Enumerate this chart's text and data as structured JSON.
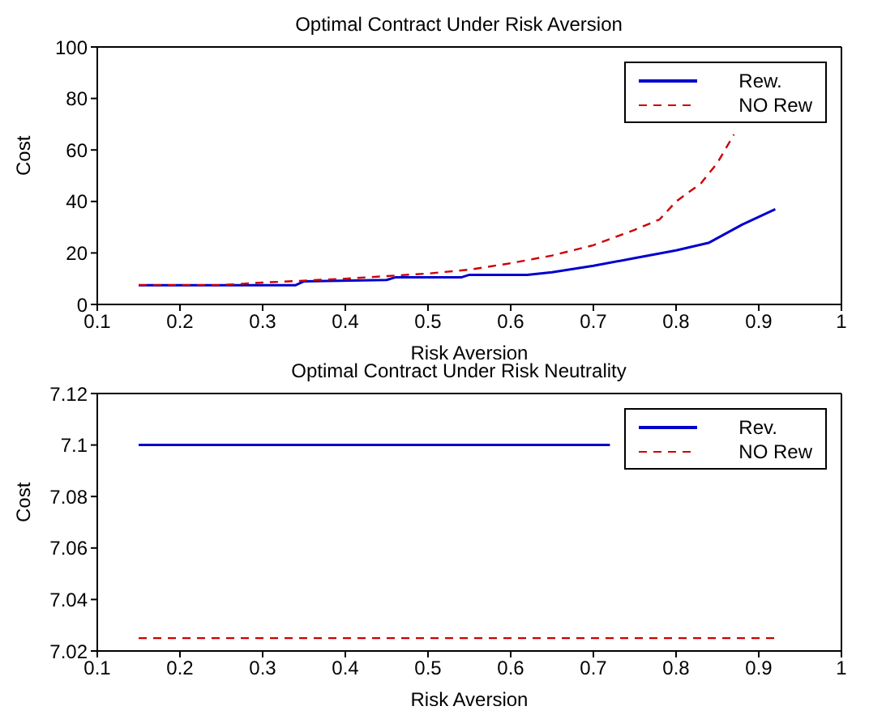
{
  "chart_data": [
    {
      "type": "line",
      "title": "Optimal Contract Under Risk Aversion",
      "xlabel": "Risk Aversion",
      "ylabel": "Cost",
      "xlim": [
        0.1,
        1
      ],
      "xticks": [
        0.1,
        0.2,
        0.3,
        0.4,
        0.5,
        0.6,
        0.7,
        0.8,
        0.9,
        1
      ],
      "ylim": [
        0,
        100
      ],
      "yticks": [
        0,
        20,
        40,
        60,
        80,
        100
      ],
      "grid": false,
      "legend": "top right",
      "series": [
        {
          "name": "Rew.",
          "color": "#0000cc",
          "line_style": "solid",
          "x": [
            0.15,
            0.34,
            0.35,
            0.45,
            0.46,
            0.54,
            0.55,
            0.62,
            0.65,
            0.7,
            0.75,
            0.8,
            0.84,
            0.88,
            0.92
          ],
          "values": [
            7.5,
            7.5,
            9,
            9.5,
            10.5,
            10.5,
            11.5,
            11.5,
            12.5,
            15,
            18,
            21,
            24,
            31,
            37
          ]
        },
        {
          "name": "NO Rew",
          "color": "#cc0000",
          "line_style": "dashed",
          "x": [
            0.15,
            0.25,
            0.3,
            0.4,
            0.45,
            0.5,
            0.55,
            0.6,
            0.65,
            0.7,
            0.75,
            0.78,
            0.8,
            0.83,
            0.85,
            0.87
          ],
          "values": [
            7.5,
            7.5,
            8.5,
            10,
            11,
            12,
            13.5,
            16,
            19,
            23,
            29,
            33,
            40,
            47,
            55,
            66
          ]
        }
      ]
    },
    {
      "type": "line",
      "title": "Optimal Contract Under Risk Neutrality",
      "xlabel": "Risk Aversion",
      "ylabel": "Cost",
      "xlim": [
        0.1,
        1
      ],
      "xticks": [
        0.1,
        0.2,
        0.3,
        0.4,
        0.5,
        0.6,
        0.7,
        0.8,
        0.9,
        1
      ],
      "ylim": [
        7.02,
        7.12
      ],
      "yticks": [
        7.02,
        7.04,
        7.06,
        7.08,
        7.1,
        7.12
      ],
      "grid": false,
      "legend": "top right",
      "series": [
        {
          "name": "Rev.",
          "color": "#0000cc",
          "line_style": "solid",
          "x": [
            0.15,
            0.72
          ],
          "values": [
            7.1,
            7.1
          ]
        },
        {
          "name": "NO Rew",
          "color": "#cc0000",
          "line_style": "dashed",
          "x": [
            0.15,
            0.92
          ],
          "values": [
            7.025,
            7.025
          ]
        }
      ]
    }
  ]
}
